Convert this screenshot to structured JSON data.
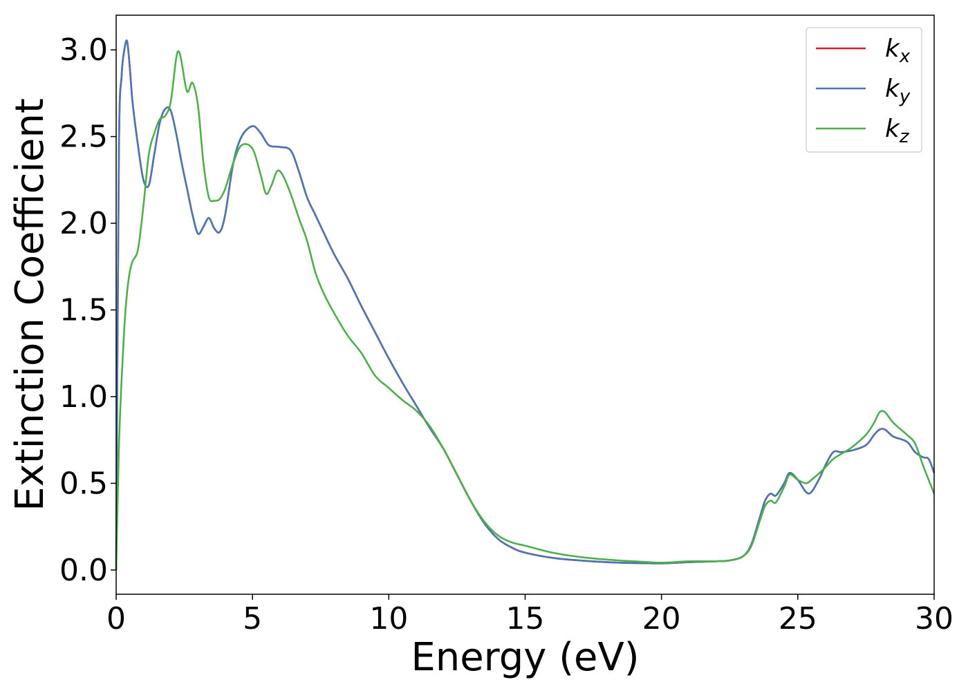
{
  "chart_data": {
    "type": "line",
    "title": "",
    "xlabel": "Energy (eV)",
    "ylabel": "Extinction Coefficient",
    "xlim": [
      0,
      30
    ],
    "ylim": [
      -0.14,
      3.2
    ],
    "xticks": [
      0,
      5,
      10,
      15,
      20,
      25,
      30
    ],
    "yticks": [
      0.0,
      0.5,
      1.0,
      1.5,
      2.0,
      2.5,
      3.0
    ],
    "xtick_labels": [
      "0",
      "5",
      "10",
      "15",
      "20",
      "25",
      "30"
    ],
    "ytick_labels": [
      "0.0",
      "0.5",
      "1.0",
      "1.5",
      "2.0",
      "2.5",
      "3.0"
    ],
    "grid": false,
    "legend_position": "top-right",
    "series": [
      {
        "name": "k_x",
        "legend_main": "k",
        "legend_sub": "x",
        "color": "#e41a1c",
        "x": [
          0.0,
          0.1,
          0.2,
          0.3,
          0.4,
          0.5,
          0.6,
          0.8,
          1.0,
          1.2,
          1.4,
          1.6,
          1.8,
          2.0,
          2.2,
          2.4,
          2.6,
          2.8,
          3.0,
          3.2,
          3.4,
          3.6,
          3.8,
          4.0,
          4.3,
          4.6,
          5.0,
          5.3,
          5.6,
          6.0,
          6.4,
          6.7,
          7.0,
          7.3,
          7.6,
          8.0,
          8.5,
          9.0,
          9.5,
          10.0,
          10.5,
          11.0,
          11.5,
          12.0,
          12.5,
          13.0,
          13.5,
          14.0,
          14.5,
          15.0,
          16.0,
          17.0,
          18.0,
          19.0,
          20.0,
          21.0,
          22.0,
          22.5,
          23.0,
          23.3,
          23.6,
          23.8,
          24.0,
          24.2,
          24.5,
          24.7,
          25.0,
          25.3,
          25.5,
          25.8,
          26.0,
          26.3,
          26.6,
          27.0,
          27.5,
          27.8,
          28.0,
          28.2,
          28.5,
          29.0,
          29.3,
          29.6,
          29.8,
          30.0
        ],
        "values": [
          0.0,
          2.4,
          2.85,
          3.0,
          3.05,
          2.9,
          2.7,
          2.45,
          2.25,
          2.22,
          2.4,
          2.58,
          2.66,
          2.65,
          2.52,
          2.35,
          2.2,
          2.05,
          1.94,
          1.98,
          2.03,
          1.97,
          1.95,
          2.05,
          2.35,
          2.5,
          2.56,
          2.52,
          2.45,
          2.44,
          2.42,
          2.3,
          2.15,
          2.05,
          1.95,
          1.82,
          1.68,
          1.52,
          1.37,
          1.22,
          1.08,
          0.95,
          0.82,
          0.7,
          0.55,
          0.4,
          0.27,
          0.18,
          0.13,
          0.1,
          0.07,
          0.055,
          0.045,
          0.04,
          0.038,
          0.045,
          0.05,
          0.055,
          0.08,
          0.15,
          0.3,
          0.4,
          0.44,
          0.43,
          0.5,
          0.56,
          0.52,
          0.45,
          0.45,
          0.53,
          0.6,
          0.68,
          0.68,
          0.69,
          0.72,
          0.78,
          0.81,
          0.81,
          0.77,
          0.74,
          0.68,
          0.65,
          0.64,
          0.56
        ]
      },
      {
        "name": "k_y",
        "legend_main": "k",
        "legend_sub": "y",
        "color": "#4a77b4",
        "x": [
          0.0,
          0.1,
          0.2,
          0.3,
          0.4,
          0.5,
          0.6,
          0.8,
          1.0,
          1.2,
          1.4,
          1.6,
          1.8,
          2.0,
          2.2,
          2.4,
          2.6,
          2.8,
          3.0,
          3.2,
          3.4,
          3.6,
          3.8,
          4.0,
          4.3,
          4.6,
          5.0,
          5.3,
          5.6,
          6.0,
          6.4,
          6.7,
          7.0,
          7.3,
          7.6,
          8.0,
          8.5,
          9.0,
          9.5,
          10.0,
          10.5,
          11.0,
          11.5,
          12.0,
          12.5,
          13.0,
          13.5,
          14.0,
          14.5,
          15.0,
          16.0,
          17.0,
          18.0,
          19.0,
          20.0,
          21.0,
          22.0,
          22.5,
          23.0,
          23.3,
          23.6,
          23.8,
          24.0,
          24.2,
          24.5,
          24.7,
          25.0,
          25.3,
          25.5,
          25.8,
          26.0,
          26.3,
          26.6,
          27.0,
          27.5,
          27.8,
          28.0,
          28.2,
          28.5,
          29.0,
          29.3,
          29.6,
          29.8,
          30.0
        ],
        "values": [
          0.0,
          2.4,
          2.85,
          3.0,
          3.05,
          2.9,
          2.7,
          2.45,
          2.25,
          2.22,
          2.4,
          2.58,
          2.66,
          2.65,
          2.52,
          2.35,
          2.2,
          2.05,
          1.94,
          1.98,
          2.03,
          1.97,
          1.95,
          2.05,
          2.35,
          2.5,
          2.56,
          2.52,
          2.45,
          2.44,
          2.42,
          2.3,
          2.15,
          2.05,
          1.95,
          1.82,
          1.68,
          1.52,
          1.37,
          1.22,
          1.08,
          0.95,
          0.82,
          0.7,
          0.55,
          0.4,
          0.27,
          0.18,
          0.13,
          0.1,
          0.07,
          0.055,
          0.045,
          0.04,
          0.038,
          0.045,
          0.05,
          0.055,
          0.08,
          0.15,
          0.3,
          0.4,
          0.44,
          0.43,
          0.5,
          0.56,
          0.52,
          0.45,
          0.45,
          0.53,
          0.6,
          0.68,
          0.68,
          0.69,
          0.72,
          0.78,
          0.81,
          0.81,
          0.77,
          0.74,
          0.68,
          0.65,
          0.64,
          0.56
        ]
      },
      {
        "name": "k_z",
        "legend_main": "k",
        "legend_sub": "z",
        "color": "#4daf4a",
        "x": [
          0.0,
          0.1,
          0.2,
          0.3,
          0.4,
          0.5,
          0.6,
          0.8,
          1.0,
          1.2,
          1.4,
          1.6,
          1.8,
          2.0,
          2.2,
          2.3,
          2.4,
          2.6,
          2.8,
          3.0,
          3.2,
          3.4,
          3.6,
          3.8,
          4.0,
          4.3,
          4.6,
          5.0,
          5.3,
          5.5,
          5.7,
          5.9,
          6.1,
          6.4,
          6.7,
          7.0,
          7.3,
          7.6,
          8.0,
          8.5,
          9.0,
          9.5,
          10.0,
          10.5,
          11.0,
          11.5,
          12.0,
          12.5,
          13.0,
          13.5,
          14.0,
          14.5,
          15.0,
          16.0,
          17.0,
          18.0,
          19.0,
          20.0,
          21.0,
          22.0,
          22.5,
          23.0,
          23.3,
          23.6,
          23.8,
          24.0,
          24.2,
          24.5,
          24.7,
          25.0,
          25.3,
          25.5,
          25.8,
          26.0,
          26.3,
          26.6,
          27.0,
          27.5,
          27.8,
          28.0,
          28.2,
          28.5,
          29.0,
          29.3,
          29.6,
          29.8,
          30.0
        ],
        "values": [
          0.0,
          0.7,
          1.1,
          1.4,
          1.6,
          1.72,
          1.78,
          1.85,
          2.1,
          2.4,
          2.52,
          2.6,
          2.62,
          2.7,
          2.95,
          2.99,
          2.93,
          2.76,
          2.81,
          2.68,
          2.35,
          2.15,
          2.13,
          2.14,
          2.2,
          2.35,
          2.45,
          2.43,
          2.28,
          2.17,
          2.22,
          2.3,
          2.28,
          2.17,
          2.03,
          1.9,
          1.72,
          1.6,
          1.48,
          1.35,
          1.25,
          1.12,
          1.05,
          0.98,
          0.92,
          0.83,
          0.7,
          0.55,
          0.4,
          0.28,
          0.2,
          0.16,
          0.14,
          0.1,
          0.075,
          0.06,
          0.05,
          0.042,
          0.05,
          0.05,
          0.055,
          0.08,
          0.14,
          0.28,
          0.37,
          0.4,
          0.39,
          0.48,
          0.55,
          0.52,
          0.5,
          0.52,
          0.56,
          0.59,
          0.64,
          0.67,
          0.71,
          0.78,
          0.85,
          0.91,
          0.91,
          0.85,
          0.78,
          0.73,
          0.6,
          0.52,
          0.44
        ]
      }
    ]
  }
}
